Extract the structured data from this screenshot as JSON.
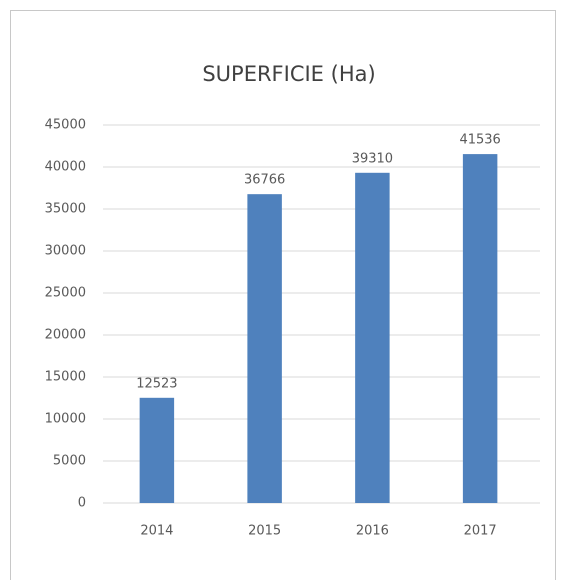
{
  "chart_data": {
    "type": "bar",
    "title": "SUPERFICIE (Ha)",
    "categories": [
      "2014",
      "2015",
      "2016",
      "2017"
    ],
    "values": [
      12523,
      36766,
      39310,
      41536
    ],
    "color": "#4f81bd",
    "ylim": [
      0,
      45000
    ],
    "yticks": [
      0,
      5000,
      10000,
      15000,
      20000,
      25000,
      30000,
      35000,
      40000,
      45000
    ],
    "grid": true
  }
}
